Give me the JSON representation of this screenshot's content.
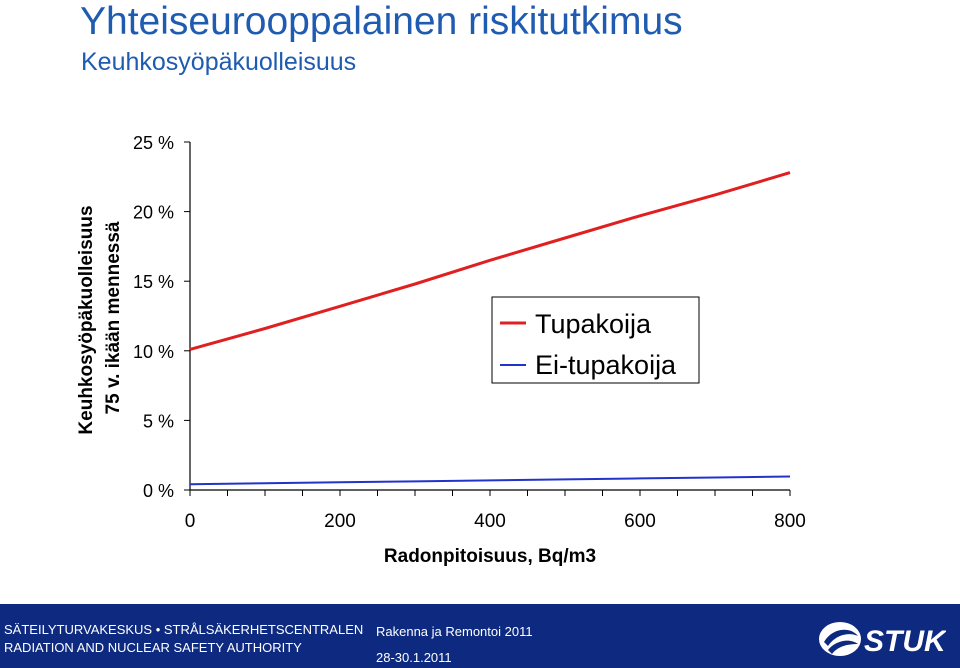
{
  "slide": {
    "title": "Yhteiseurooppalainen riskitutkimus",
    "subtitle": "Keuhkosyöpäkuolleisuus"
  },
  "chart_data": {
    "type": "line",
    "xlabel": "Radonpitoisuus, Bq/m3",
    "ylabel_line1": "Keuhkosyöpäkuolleisuus",
    "ylabel_line2": "75 v. ikään mennessä",
    "xlim": [
      0,
      800
    ],
    "ylim": [
      0,
      25
    ],
    "x_ticks": [
      0,
      200,
      400,
      600,
      800
    ],
    "y_ticks": [
      0,
      5,
      10,
      15,
      20,
      25
    ],
    "y_tick_labels": [
      "0 %",
      "5 %",
      "10 %",
      "15 %",
      "20 %",
      "25 %"
    ],
    "grid": false,
    "legend_position": "right",
    "series": [
      {
        "name": "Tupakoija",
        "color": "#e02020",
        "x": [
          0,
          100,
          200,
          300,
          400,
          500,
          600,
          700,
          800
        ],
        "y": [
          10.1,
          11.6,
          13.2,
          14.8,
          16.5,
          18.1,
          19.7,
          21.2,
          22.8
        ]
      },
      {
        "name": "Ei-tupakoija",
        "color": "#2233cc",
        "x": [
          0,
          100,
          200,
          300,
          400,
          500,
          600,
          700,
          800
        ],
        "y": [
          0.42,
          0.48,
          0.55,
          0.62,
          0.69,
          0.76,
          0.83,
          0.9,
          0.97
        ]
      }
    ]
  },
  "footer": {
    "org_line1": "SÄTEILYTURVAKESKUS • STRÅLSÄKERHETSCENTRALEN",
    "org_line2": "RADIATION AND NUCLEAR SAFETY AUTHORITY",
    "event": "Rakenna ja Remontoi 2011",
    "date": "28-30.1.2011",
    "logo_text": "STUK",
    "logo_icon": "stuk-swirl-icon"
  }
}
